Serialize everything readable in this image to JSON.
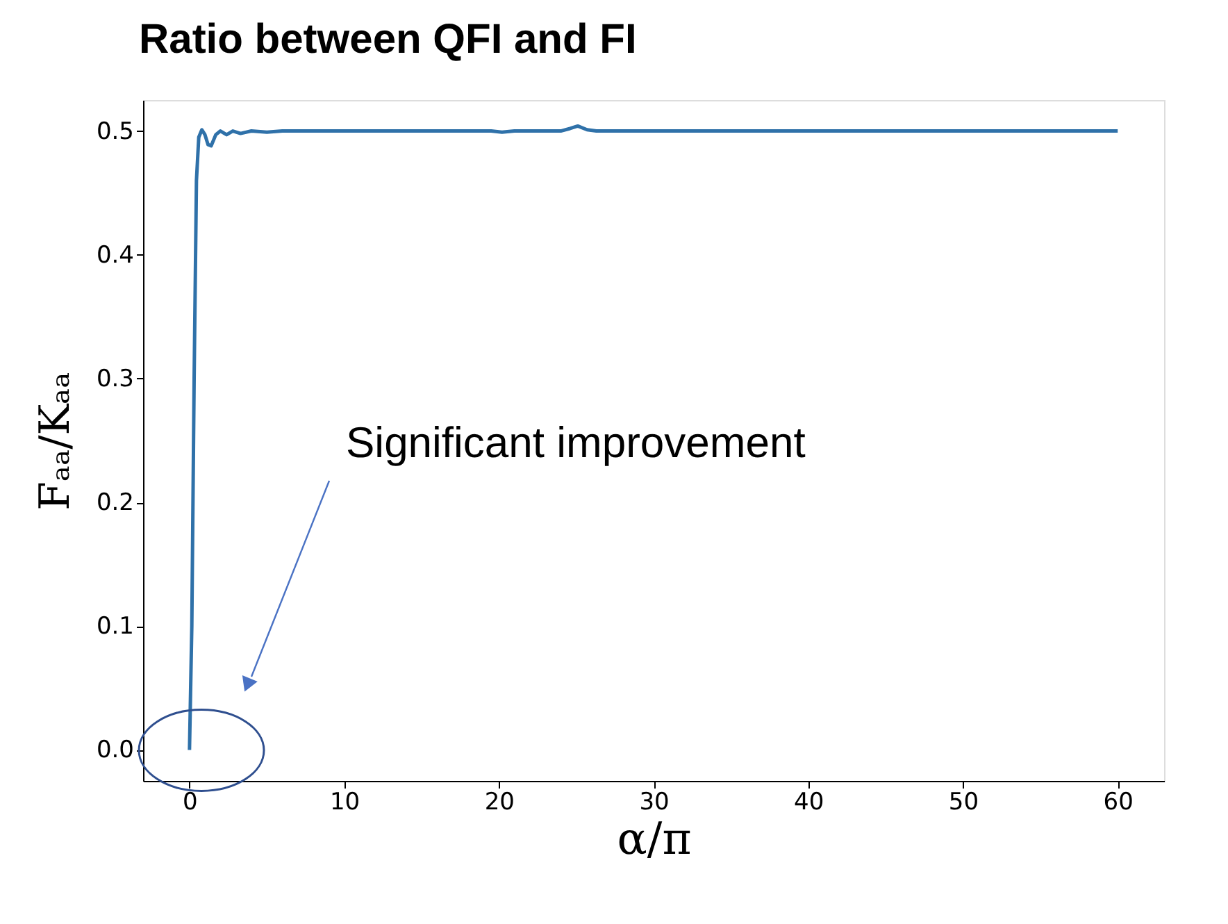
{
  "chart_data": {
    "type": "line",
    "title": "Ratio between QFI and FI",
    "xlabel": "α/π",
    "ylabel": "Fₐₐ/Kₐₐ",
    "annotations": [
      "Significant improvement"
    ],
    "x": [
      0,
      0.15,
      0.3,
      0.45,
      0.6,
      0.8,
      1.0,
      1.2,
      1.4,
      1.7,
      2.0,
      2.4,
      2.8,
      3.3,
      4,
      5,
      6,
      8,
      10,
      15,
      19.5,
      20.2,
      21,
      24,
      24.6,
      25.1,
      25.7,
      26.3,
      30,
      40,
      50,
      60
    ],
    "series": [
      {
        "color": "#2f71a9",
        "values": [
          0,
          0.1,
          0.3,
          0.46,
          0.495,
          0.501,
          0.497,
          0.489,
          0.488,
          0.497,
          0.5,
          0.497,
          0.5,
          0.498,
          0.5,
          0.499,
          0.5,
          0.5,
          0.5,
          0.5,
          0.5,
          0.499,
          0.5,
          0.5,
          0.502,
          0.504,
          0.501,
          0.5,
          0.5,
          0.5,
          0.5,
          0.5
        ]
      }
    ],
    "xlim": [
      -3,
      63
    ],
    "ylim": [
      -0.025,
      0.525
    ],
    "xticks": [
      0,
      10,
      20,
      30,
      40,
      50,
      60
    ],
    "yticks": [
      {
        "value": 0,
        "label": "0.0"
      },
      {
        "value": 0.1,
        "label": "0.1"
      },
      {
        "value": 0.2,
        "label": "0.2"
      },
      {
        "value": 0.3,
        "label": "0.3"
      },
      {
        "value": 0.4,
        "label": "0.4"
      },
      {
        "value": 0.5,
        "label": "0.5"
      }
    ],
    "grid": false,
    "legend": false,
    "marker": "none",
    "line_style": "solid"
  }
}
